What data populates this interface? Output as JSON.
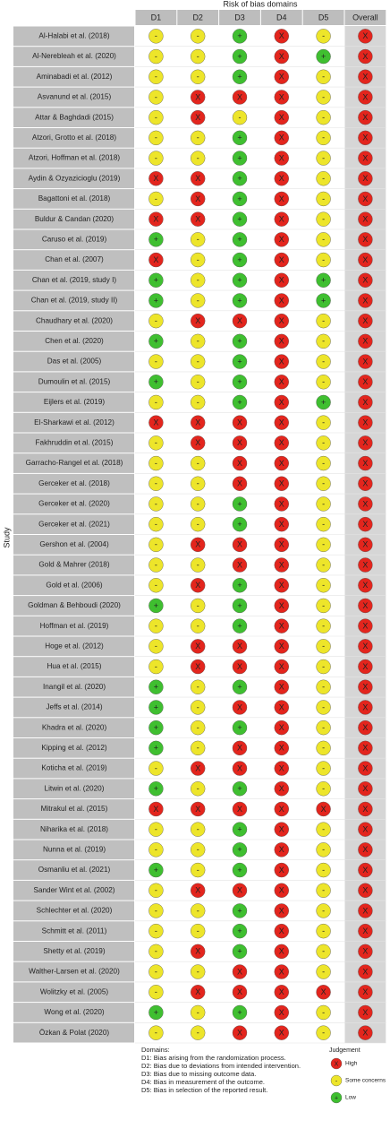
{
  "header": {
    "title": "Risk of bias domains",
    "columns": [
      "D1",
      "D2",
      "D3",
      "D4",
      "D5",
      "Overall"
    ],
    "row_label": "Study"
  },
  "rows": [
    [
      "Al-Halabi et al. (2018)",
      [
        "-",
        "-",
        "+",
        "X",
        "-",
        "X"
      ]
    ],
    [
      "Al-Nerebleah et al. (2020)",
      [
        "-",
        "-",
        "+",
        "X",
        "+",
        "X"
      ]
    ],
    [
      "Aminabadi et al. (2012)",
      [
        "-",
        "-",
        "+",
        "X",
        "-",
        "X"
      ]
    ],
    [
      "Asvanund et al. (2015)",
      [
        "-",
        "X",
        "X",
        "X",
        "-",
        "X"
      ]
    ],
    [
      "Attar & Baghdadi (2015)",
      [
        "-",
        "X",
        "-",
        "X",
        "-",
        "X"
      ]
    ],
    [
      "Atzori, Grotto et al. (2018)",
      [
        "-",
        "-",
        "+",
        "X",
        "-",
        "X"
      ]
    ],
    [
      "Atzori, Hoffman et al. (2018)",
      [
        "-",
        "-",
        "+",
        "X",
        "-",
        "X"
      ]
    ],
    [
      "Aydin & Ozyazicioglu (2019)",
      [
        "X",
        "X",
        "+",
        "X",
        "-",
        "X"
      ]
    ],
    [
      "Bagattoni et al. (2018)",
      [
        "-",
        "X",
        "+",
        "X",
        "-",
        "X"
      ]
    ],
    [
      "Buldur & Candan (2020)",
      [
        "X",
        "X",
        "+",
        "X",
        "-",
        "X"
      ]
    ],
    [
      "Caruso et al. (2019)",
      [
        "+",
        "-",
        "+",
        "X",
        "-",
        "X"
      ]
    ],
    [
      "Chan et al. (2007)",
      [
        "X",
        "-",
        "+",
        "X",
        "-",
        "X"
      ]
    ],
    [
      "Chan et al. (2019, study I)",
      [
        "+",
        "-",
        "+",
        "X",
        "+",
        "X"
      ]
    ],
    [
      "Chan et al. (2019, study II)",
      [
        "+",
        "-",
        "+",
        "X",
        "+",
        "X"
      ]
    ],
    [
      "Chaudhary et al. (2020)",
      [
        "-",
        "X",
        "X",
        "X",
        "-",
        "X"
      ]
    ],
    [
      "Chen et al. (2020)",
      [
        "+",
        "-",
        "+",
        "X",
        "-",
        "X"
      ]
    ],
    [
      "Das et al. (2005)",
      [
        "-",
        "-",
        "+",
        "X",
        "-",
        "X"
      ]
    ],
    [
      "Dumoulin et al. (2015)",
      [
        "+",
        "-",
        "+",
        "X",
        "-",
        "X"
      ]
    ],
    [
      "Eijlers et al. (2019)",
      [
        "-",
        "-",
        "+",
        "X",
        "+",
        "X"
      ]
    ],
    [
      "El-Sharkawi et al. (2012)",
      [
        "X",
        "X",
        "X",
        "X",
        "-",
        "X"
      ]
    ],
    [
      "Fakhruddin et al. (2015)",
      [
        "-",
        "X",
        "X",
        "X",
        "-",
        "X"
      ]
    ],
    [
      "Garracho-Rangel et al. (2018)",
      [
        "-",
        "-",
        "X",
        "X",
        "-",
        "X"
      ]
    ],
    [
      "Gerceker et al. (2018)",
      [
        "-",
        "-",
        "X",
        "X",
        "-",
        "X"
      ]
    ],
    [
      "Gerceker et al. (2020)",
      [
        "-",
        "-",
        "+",
        "X",
        "-",
        "X"
      ]
    ],
    [
      "Gerceker et al. (2021)",
      [
        "-",
        "-",
        "+",
        "X",
        "-",
        "X"
      ]
    ],
    [
      "Gershon et al. (2004)",
      [
        "-",
        "X",
        "X",
        "X",
        "-",
        "X"
      ]
    ],
    [
      "Gold & Mahrer (2018)",
      [
        "-",
        "-",
        "X",
        "X",
        "-",
        "X"
      ]
    ],
    [
      "Gold et al. (2006)",
      [
        "-",
        "X",
        "+",
        "X",
        "-",
        "X"
      ]
    ],
    [
      "Goldman & Behboudi (2020)",
      [
        "+",
        "-",
        "+",
        "X",
        "-",
        "X"
      ]
    ],
    [
      "Hoffman et al. (2019)",
      [
        "-",
        "-",
        "+",
        "X",
        "-",
        "X"
      ]
    ],
    [
      "Hoge et al. (2012)",
      [
        "-",
        "X",
        "X",
        "X",
        "-",
        "X"
      ]
    ],
    [
      "Hua et al. (2015)",
      [
        "-",
        "X",
        "X",
        "X",
        "-",
        "X"
      ]
    ],
    [
      "Inangil et al. (2020)",
      [
        "+",
        "-",
        "+",
        "X",
        "-",
        "X"
      ]
    ],
    [
      "Jeffs et al. (2014)",
      [
        "+",
        "-",
        "X",
        "X",
        "-",
        "X"
      ]
    ],
    [
      "Khadra et al. (2020)",
      [
        "+",
        "-",
        "+",
        "X",
        "-",
        "X"
      ]
    ],
    [
      "Kipping et al. (2012)",
      [
        "+",
        "-",
        "X",
        "X",
        "-",
        "X"
      ]
    ],
    [
      "Koticha et al. (2019)",
      [
        "-",
        "X",
        "X",
        "X",
        "-",
        "X"
      ]
    ],
    [
      "Litwin et al. (2020)",
      [
        "+",
        "-",
        "+",
        "X",
        "-",
        "X"
      ]
    ],
    [
      "Mitrakul et al. (2015)",
      [
        "X",
        "X",
        "X",
        "X",
        "X",
        "X"
      ]
    ],
    [
      "Niharika et al. (2018)",
      [
        "-",
        "-",
        "+",
        "X",
        "-",
        "X"
      ]
    ],
    [
      "Nunna et al. (2019)",
      [
        "-",
        "-",
        "+",
        "X",
        "-",
        "X"
      ]
    ],
    [
      "Osmanliu et al. (2021)",
      [
        "+",
        "-",
        "+",
        "X",
        "-",
        "X"
      ]
    ],
    [
      "Sander Wint et al. (2002)",
      [
        "-",
        "X",
        "X",
        "X",
        "-",
        "X"
      ]
    ],
    [
      "Schlechter et al. (2020)",
      [
        "-",
        "-",
        "+",
        "X",
        "-",
        "X"
      ]
    ],
    [
      "Schmitt et al. (2011)",
      [
        "-",
        "-",
        "+",
        "X",
        "-",
        "X"
      ]
    ],
    [
      "Shetty et al. (2019)",
      [
        "-",
        "X",
        "+",
        "X",
        "-",
        "X"
      ]
    ],
    [
      "Walther-Larsen et al. (2020)",
      [
        "-",
        "-",
        "X",
        "X",
        "-",
        "X"
      ]
    ],
    [
      "Wolitzky et al. (2005)",
      [
        "-",
        "X",
        "X",
        "X",
        "X",
        "X"
      ]
    ],
    [
      "Wong et al. (2020)",
      [
        "+",
        "-",
        "+",
        "X",
        "-",
        "X"
      ]
    ],
    [
      "Özkan & Polat (2020)",
      [
        "-",
        "-",
        "X",
        "X",
        "-",
        "X"
      ]
    ]
  ],
  "footer": {
    "domains_title": "Domains:",
    "domains": [
      "D1: Bias arising from the randomization process.",
      "D2: Bias due to deviations from intended intervention.",
      "D3: Bias due to missing outcome data.",
      "D4: Bias in measurement of the outcome.",
      "D5: Bias in selection of the reported result."
    ],
    "judgement_title": "Judgement",
    "items": [
      {
        "symbol": "X",
        "label": "High",
        "color": "#e3251d"
      },
      {
        "symbol": "-",
        "label": "Some concerns",
        "color": "#ede52a"
      },
      {
        "symbol": "+",
        "label": "Low",
        "color": "#3fbf30"
      }
    ]
  }
}
